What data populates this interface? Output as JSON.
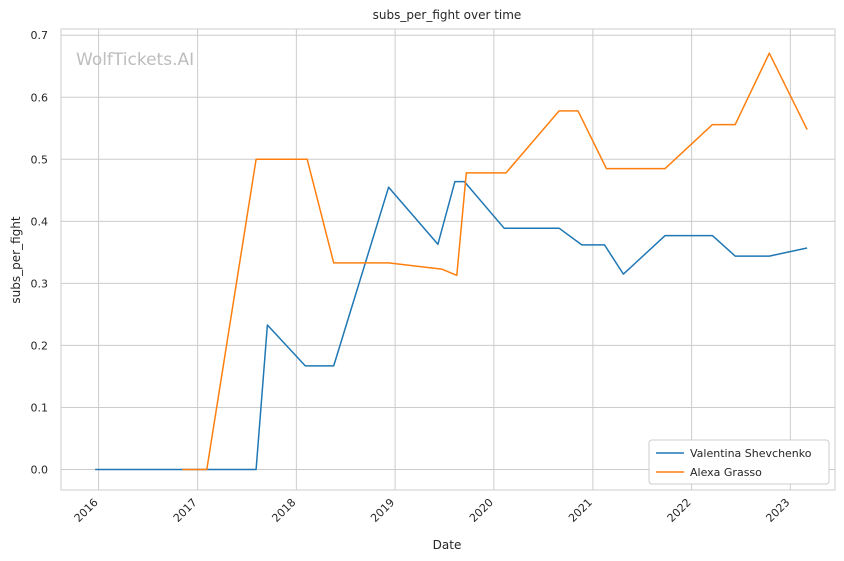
{
  "chart_data": {
    "type": "line",
    "title": "subs_per_fight over time",
    "xlabel": "Date",
    "ylabel": "subs_per_fight",
    "watermark": "WolfTickets.AI",
    "xlim": [
      "2015-08-15",
      "2023-06-15"
    ],
    "ylim": [
      -0.033,
      0.71
    ],
    "x_ticks": [
      "2016",
      "2017",
      "2018",
      "2019",
      "2020",
      "2021",
      "2022",
      "2023"
    ],
    "y_ticks": [
      "0.0",
      "0.1",
      "0.2",
      "0.3",
      "0.4",
      "0.5",
      "0.6",
      "0.7"
    ],
    "grid": true,
    "legend_position": "lower-right",
    "series": [
      {
        "name": "Valentina Shevchenko",
        "color": "#1f77b4",
        "points": [
          [
            "2015-12-19",
            0.0
          ],
          [
            "2016-07-23",
            0.0
          ],
          [
            "2017-08-05",
            0.0
          ],
          [
            "2017-09-16",
            0.233
          ],
          [
            "2018-02-03",
            0.167
          ],
          [
            "2018-05-19",
            0.167
          ],
          [
            "2018-12-08",
            0.455
          ],
          [
            "2019-06-08",
            0.363
          ],
          [
            "2019-08-10",
            0.464
          ],
          [
            "2019-09-14",
            0.464
          ],
          [
            "2020-02-08",
            0.389
          ],
          [
            "2020-08-29",
            0.389
          ],
          [
            "2020-11-21",
            0.362
          ],
          [
            "2021-02-13",
            0.362
          ],
          [
            "2021-04-24",
            0.315
          ],
          [
            "2021-09-25",
            0.377
          ],
          [
            "2022-03-19",
            0.377
          ],
          [
            "2022-06-11",
            0.344
          ],
          [
            "2022-10-15",
            0.344
          ],
          [
            "2023-03-04",
            0.357
          ]
        ]
      },
      {
        "name": "Alexa Grasso",
        "color": "#ff7f0e",
        "points": [
          [
            "2016-11-05",
            0.0
          ],
          [
            "2017-02-04",
            0.0
          ],
          [
            "2017-08-05",
            0.5
          ],
          [
            "2018-02-10",
            0.5
          ],
          [
            "2018-05-19",
            0.333
          ],
          [
            "2018-12-08",
            0.333
          ],
          [
            "2019-06-22",
            0.323
          ],
          [
            "2019-08-17",
            0.313
          ],
          [
            "2019-09-21",
            0.478
          ],
          [
            "2020-02-15",
            0.478
          ],
          [
            "2020-08-29",
            0.578
          ],
          [
            "2020-11-07",
            0.578
          ],
          [
            "2021-02-20",
            0.485
          ],
          [
            "2021-09-25",
            0.485
          ],
          [
            "2022-03-19",
            0.556
          ],
          [
            "2022-06-11",
            0.556
          ],
          [
            "2022-10-15",
            0.671
          ],
          [
            "2023-03-04",
            0.548
          ]
        ]
      }
    ]
  }
}
